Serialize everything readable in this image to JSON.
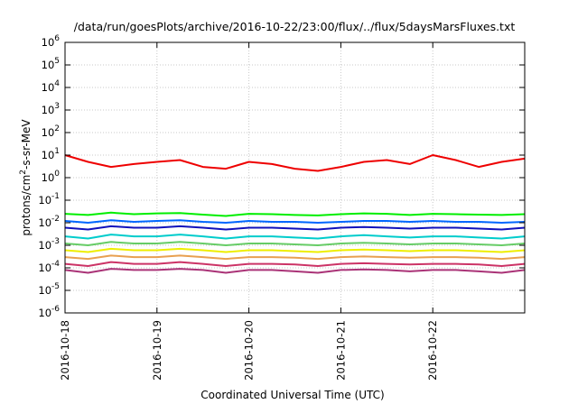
{
  "chart_data": {
    "type": "line",
    "title": "/data/run/goesPlots/archive/2016-10-22/23:00/flux/../flux/5daysMarsFluxes.txt",
    "xlabel": "Coordinated Universal Time (UTC)",
    "ylabel": "protons/cm²-s-sr-MeV",
    "y_scale": "log",
    "ylim": [
      1e-06,
      1000000.0
    ],
    "xlim": [
      "2016-10-18",
      "2016-10-23"
    ],
    "x_ticks": [
      "2016-10-18",
      "2016-10-19",
      "2016-10-20",
      "2016-10-21",
      "2016-10-22"
    ],
    "y_ticks": [
      {
        "base": "10",
        "exp": "6"
      },
      {
        "base": "10",
        "exp": "5"
      },
      {
        "base": "10",
        "exp": "4"
      },
      {
        "base": "10",
        "exp": "3"
      },
      {
        "base": "10",
        "exp": "2"
      },
      {
        "base": "10",
        "exp": "1"
      },
      {
        "base": "10",
        "exp": "0"
      },
      {
        "base": "10",
        "exp": "-1"
      },
      {
        "base": "10",
        "exp": "-2"
      },
      {
        "base": "10",
        "exp": "-3"
      },
      {
        "base": "10",
        "exp": "-4"
      },
      {
        "base": "10",
        "exp": "-5"
      },
      {
        "base": "10",
        "exp": "-6"
      }
    ],
    "grid": true,
    "legend": "none",
    "x": [
      "2016-10-18 00:00",
      "2016-10-18 06:00",
      "2016-10-18 12:00",
      "2016-10-18 18:00",
      "2016-10-19 00:00",
      "2016-10-19 06:00",
      "2016-10-19 12:00",
      "2016-10-19 18:00",
      "2016-10-20 00:00",
      "2016-10-20 06:00",
      "2016-10-20 12:00",
      "2016-10-20 18:00",
      "2016-10-21 00:00",
      "2016-10-21 06:00",
      "2016-10-21 12:00",
      "2016-10-21 18:00",
      "2016-10-22 00:00",
      "2016-10-22 06:00",
      "2016-10-22 12:00",
      "2016-10-22 18:00",
      "2016-10-23 00:00"
    ],
    "series": [
      {
        "color": "#ee0000",
        "values": [
          10,
          5,
          3,
          4,
          5,
          6,
          3,
          2.5,
          5,
          4,
          2.5,
          2,
          3,
          5,
          6,
          4,
          10,
          6,
          3,
          5,
          7
        ]
      },
      {
        "color": "#00ee00",
        "values": [
          0.025,
          0.022,
          0.028,
          0.024,
          0.026,
          0.027,
          0.023,
          0.02,
          0.025,
          0.024,
          0.022,
          0.021,
          0.024,
          0.026,
          0.025,
          0.022,
          0.025,
          0.024,
          0.023,
          0.022,
          0.024
        ]
      },
      {
        "color": "#0066ff",
        "values": [
          0.012,
          0.01,
          0.013,
          0.011,
          0.012,
          0.013,
          0.011,
          0.01,
          0.012,
          0.011,
          0.011,
          0.01,
          0.011,
          0.012,
          0.012,
          0.011,
          0.012,
          0.011,
          0.011,
          0.01,
          0.011
        ]
      },
      {
        "color": "#1111bb",
        "values": [
          0.006,
          0.005,
          0.007,
          0.006,
          0.006,
          0.007,
          0.006,
          0.005,
          0.006,
          0.006,
          0.0055,
          0.005,
          0.006,
          0.0065,
          0.006,
          0.0055,
          0.006,
          0.006,
          0.0055,
          0.005,
          0.006
        ]
      },
      {
        "color": "#00cccc",
        "values": [
          0.0025,
          0.002,
          0.003,
          0.0025,
          0.0025,
          0.003,
          0.0025,
          0.002,
          0.0025,
          0.0025,
          0.0022,
          0.002,
          0.0025,
          0.0028,
          0.0025,
          0.0022,
          0.0025,
          0.0025,
          0.0022,
          0.002,
          0.0025
        ]
      },
      {
        "color": "#66cc66",
        "values": [
          0.0012,
          0.001,
          0.0014,
          0.0012,
          0.0012,
          0.0014,
          0.0012,
          0.001,
          0.0012,
          0.0012,
          0.0011,
          0.001,
          0.0012,
          0.0013,
          0.0012,
          0.0011,
          0.0012,
          0.0012,
          0.0011,
          0.001,
          0.0012
        ]
      },
      {
        "color": "#eeee00",
        "values": [
          0.0006,
          0.0005,
          0.0007,
          0.0006,
          0.0006,
          0.0007,
          0.0006,
          0.0005,
          0.0006,
          0.0006,
          0.00055,
          0.0005,
          0.0006,
          0.00065,
          0.0006,
          0.00055,
          0.0006,
          0.0006,
          0.00055,
          0.0005,
          0.0006
        ]
      },
      {
        "color": "#e8a050",
        "values": [
          0.0003,
          0.00025,
          0.00035,
          0.0003,
          0.0003,
          0.00035,
          0.0003,
          0.00025,
          0.0003,
          0.0003,
          0.00028,
          0.00025,
          0.0003,
          0.00032,
          0.0003,
          0.00028,
          0.0003,
          0.0003,
          0.00028,
          0.00025,
          0.0003
        ]
      },
      {
        "color": "#cc3366",
        "values": [
          0.00015,
          0.00012,
          0.00018,
          0.00015,
          0.00015,
          0.00018,
          0.00015,
          0.00012,
          0.00015,
          0.00015,
          0.00014,
          0.00012,
          0.00015,
          0.00016,
          0.00015,
          0.00014,
          0.00015,
          0.00015,
          0.00014,
          0.00012,
          0.00015
        ]
      },
      {
        "color": "#aa3377",
        "values": [
          8e-05,
          6e-05,
          9e-05,
          8e-05,
          8e-05,
          9e-05,
          8e-05,
          6e-05,
          8e-05,
          8e-05,
          7e-05,
          6e-05,
          8e-05,
          8.5e-05,
          8e-05,
          7e-05,
          8e-05,
          8e-05,
          7e-05,
          6e-05,
          8e-05
        ]
      }
    ]
  }
}
